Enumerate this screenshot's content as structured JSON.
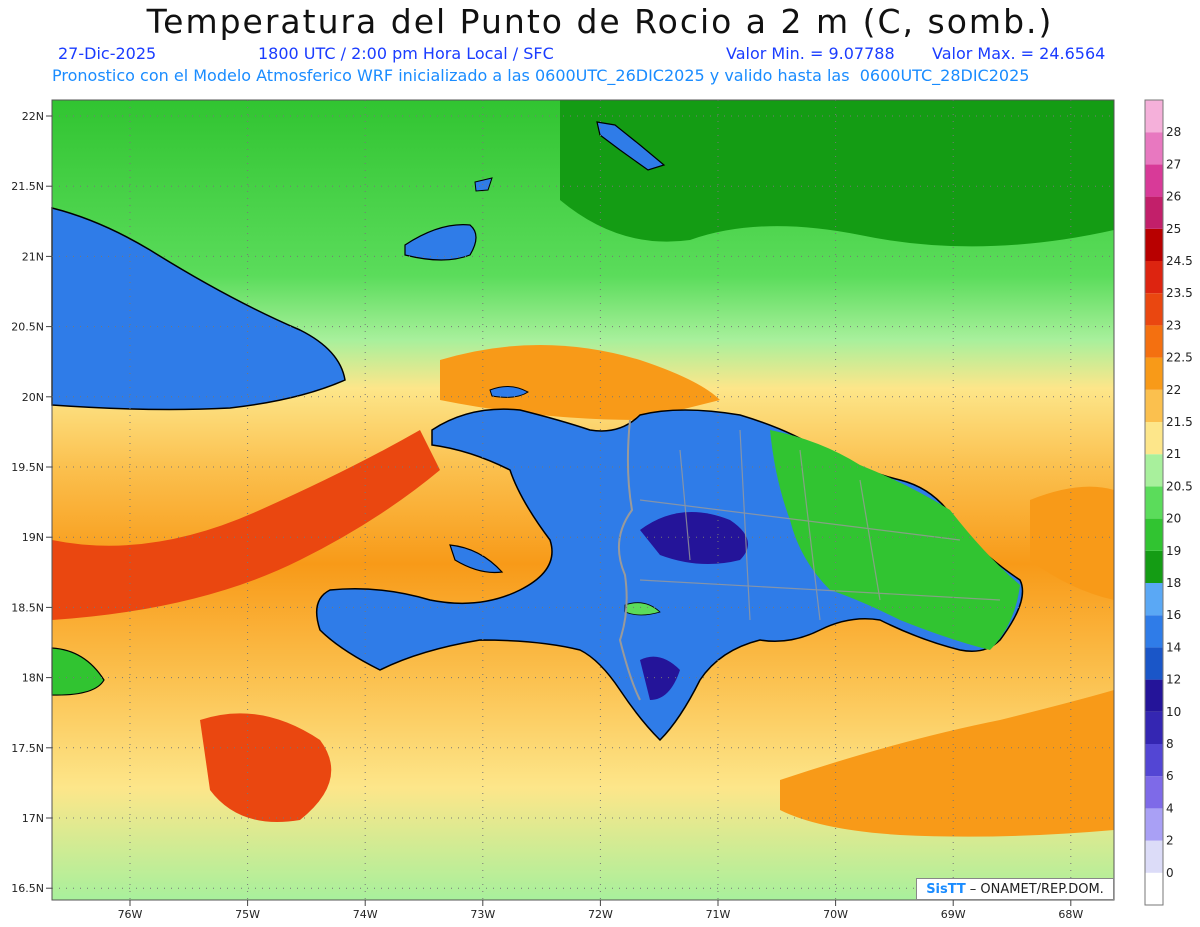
{
  "header": {
    "title": "Temperatura del Punto de Rocio a 2 m (C, somb.)",
    "date": "27-Dic-2025",
    "time_info": "1800 UTC / 2:00 pm Hora Local / SFC",
    "min_label": "Valor Min. = 9.07788",
    "max_label": "Valor Max. = 24.6564",
    "model_info": "Pronostico con el Modelo Atmosferico WRF inicializado a las 0600UTC_26DIC2025 y valido hasta las  0600UTC_28DIC2025"
  },
  "axes": {
    "lat_labels": [
      "22N",
      "21.5N",
      "21N",
      "20.5N",
      "20N",
      "19.5N",
      "19N",
      "18.5N",
      "18N",
      "17.5N",
      "17N",
      "16.5N"
    ],
    "lon_labels": [
      "76W",
      "75W",
      "74W",
      "73W",
      "72W",
      "71W",
      "70W",
      "69W",
      "68W"
    ]
  },
  "colorbar": {
    "levels": [
      "0",
      "2",
      "4",
      "6",
      "8",
      "10",
      "12",
      "14",
      "16",
      "18",
      "19",
      "20",
      "20.5",
      "21",
      "21.5",
      "22",
      "22.5",
      "23",
      "23.5",
      "24.5",
      "25",
      "26",
      "27",
      "28"
    ],
    "colors": [
      "#ffffff",
      "#dcdcf8",
      "#a9a0f5",
      "#7e6ae8",
      "#5346d4",
      "#3426b2",
      "#241499",
      "#1a56c8",
      "#2f7ce8",
      "#5aa8f5",
      "#149c14",
      "#31c431",
      "#5bdc5b",
      "#a8f09c",
      "#fde68a",
      "#fbc04e",
      "#f89a18",
      "#f47010",
      "#ea4710",
      "#dd2410",
      "#b80000",
      "#c21f6a",
      "#d83a98",
      "#e878c0",
      "#f5b0da"
    ]
  },
  "credit": {
    "brand": "SisTT",
    "text": "– ONAMET/REP.DOM."
  },
  "palette": {
    "ocean_orange": "#f89a18",
    "ocean_yellow": "#fde68a",
    "ocean_green": "#31c431",
    "land_blue": "#2f7ce8",
    "land_darkblue": "#241499",
    "border_gray": "#9a9a9a"
  }
}
